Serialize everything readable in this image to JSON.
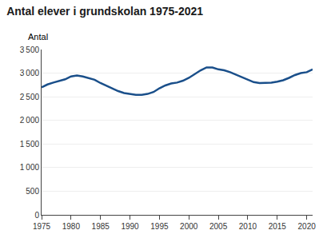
{
  "chart_data": {
    "type": "line",
    "title": "Antal elever i grundskolan 1975-2021",
    "ylabel": "Antal",
    "color": "#1a4f8a",
    "x": [
      1975,
      1976,
      1977,
      1978,
      1979,
      1980,
      1981,
      1982,
      1983,
      1984,
      1985,
      1986,
      1987,
      1988,
      1989,
      1990,
      1991,
      1992,
      1993,
      1994,
      1995,
      1996,
      1997,
      1998,
      1999,
      2000,
      2001,
      2002,
      2003,
      2004,
      2005,
      2006,
      2007,
      2008,
      2009,
      2010,
      2011,
      2012,
      2013,
      2014,
      2015,
      2016,
      2017,
      2018,
      2019,
      2020,
      2021
    ],
    "values": [
      2700,
      2760,
      2800,
      2830,
      2870,
      2930,
      2950,
      2930,
      2900,
      2860,
      2790,
      2730,
      2680,
      2620,
      2580,
      2560,
      2540,
      2540,
      2560,
      2600,
      2680,
      2740,
      2780,
      2800,
      2840,
      2900,
      2980,
      3060,
      3120,
      3120,
      3080,
      3060,
      3020,
      2970,
      2920,
      2860,
      2810,
      2790,
      2790,
      2800,
      2820,
      2850,
      2900,
      2960,
      3000,
      3020,
      3080
    ],
    "xlim": [
      1975,
      2021
    ],
    "xticks": [
      1975,
      1980,
      1985,
      1990,
      1995,
      2000,
      2005,
      2010,
      2015,
      2020
    ],
    "ylim": [
      0,
      3500
    ],
    "yticks": [
      0,
      500,
      {
        "value": 1000,
        "label": "1 000"
      },
      {
        "value": 1500,
        "label": "1 500"
      },
      {
        "value": 2000,
        "label": "2 000"
      },
      {
        "value": 2500,
        "label": "2 500"
      },
      {
        "value": 3000,
        "label": "3 000"
      },
      {
        "value": 3500,
        "label": "3 500"
      }
    ],
    "grid": true
  }
}
